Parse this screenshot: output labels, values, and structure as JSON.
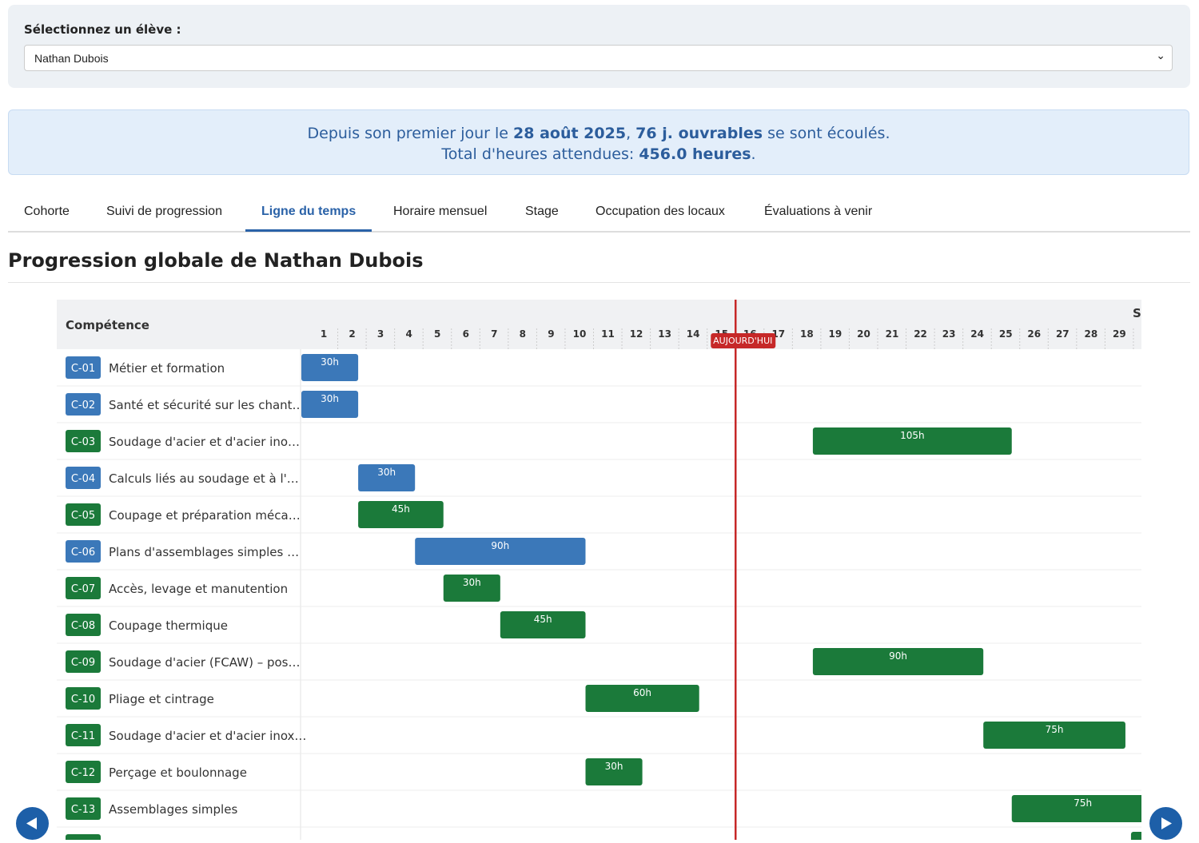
{
  "selector": {
    "label": "Sélectionnez un élève :",
    "value": "Nathan Dubois"
  },
  "banner": {
    "line1": [
      "Depuis son premier jour le ",
      "28 août 2025",
      ", ",
      "76 j. ouvrables",
      " se sont écoulés."
    ],
    "line2": [
      "Total d'heures attendues: ",
      "456.0 heures",
      "."
    ]
  },
  "tabs": [
    "Cohorte",
    "Suivi de progression",
    "Ligne du temps",
    "Horaire mensuel",
    "Stage",
    "Occupation des locaux",
    "Évaluations à venir"
  ],
  "active_tab": 2,
  "heading": {
    "prefix": "Progression globale de ",
    "name": "Nathan Dubois"
  },
  "gantt": {
    "column_header": "Compétence",
    "month": "S",
    "today_label": "AUJOURD'HUI",
    "today": 16,
    "days": [
      1,
      2,
      3,
      4,
      5,
      6,
      7,
      8,
      9,
      10,
      11,
      12,
      13,
      14,
      15,
      16,
      17,
      18,
      19,
      20,
      21,
      22,
      23,
      24,
      25,
      26,
      27,
      28,
      29
    ],
    "rows": [
      {
        "code": "C-01",
        "name": "Métier et formation",
        "color": "#3b78b9",
        "start": 1,
        "end": 2,
        "label": "30h"
      },
      {
        "code": "C-02",
        "name": "Santé et sécurité sur les chant…",
        "color": "#3b78b9",
        "start": 1,
        "end": 2,
        "label": "30h"
      },
      {
        "code": "C-03",
        "name": "Soudage d'acier et d'acier ino…",
        "color": "#1b7a3a",
        "start": 19,
        "end": 25,
        "label": "105h"
      },
      {
        "code": "C-04",
        "name": "Calculs liés au soudage et à l'…",
        "color": "#3b78b9",
        "start": 3,
        "end": 4,
        "label": "30h"
      },
      {
        "code": "C-05",
        "name": "Coupage et préparation méca…",
        "color": "#1b7a3a",
        "start": 3,
        "end": 5,
        "label": "45h"
      },
      {
        "code": "C-06",
        "name": "Plans d'assemblages simples …",
        "color": "#3b78b9",
        "start": 5,
        "end": 10,
        "label": "90h"
      },
      {
        "code": "C-07",
        "name": "Accès, levage et manutention",
        "color": "#1b7a3a",
        "start": 6,
        "end": 7,
        "label": "30h"
      },
      {
        "code": "C-08",
        "name": "Coupage thermique",
        "color": "#1b7a3a",
        "start": 8,
        "end": 10,
        "label": "45h"
      },
      {
        "code": "C-09",
        "name": "Soudage d'acier (FCAW) – pos…",
        "color": "#1b7a3a",
        "start": 19,
        "end": 24,
        "label": "90h"
      },
      {
        "code": "C-10",
        "name": "Pliage et cintrage",
        "color": "#1b7a3a",
        "start": 11,
        "end": 14,
        "label": "60h"
      },
      {
        "code": "C-11",
        "name": "Soudage d'acier et d'acier inox…",
        "color": "#1b7a3a",
        "start": 25,
        "end": 29,
        "label": "75h"
      },
      {
        "code": "C-12",
        "name": "Perçage et boulonnage",
        "color": "#1b7a3a",
        "start": 11,
        "end": 12,
        "label": "30h"
      },
      {
        "code": "C-13",
        "name": "Assemblages simples",
        "color": "#1b7a3a",
        "start": 26,
        "end": 30,
        "label": "75h"
      }
    ]
  }
}
